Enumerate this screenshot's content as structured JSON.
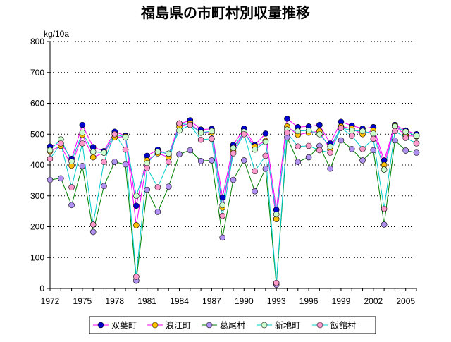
{
  "chart_data": {
    "type": "line",
    "title": "福島県の市町村別収量推移",
    "ylabel": "kg/10a",
    "xlabel": "",
    "ylim": [
      0,
      800
    ],
    "yticks": [
      0,
      100,
      200,
      300,
      400,
      500,
      600,
      700,
      800
    ],
    "xlim": [
      1972,
      2006
    ],
    "xticks": [
      1972,
      1975,
      1978,
      1981,
      1984,
      1987,
      1990,
      1993,
      1996,
      1999,
      2002,
      2005
    ],
    "grid": "horizontal dotted",
    "legend_position": "bottom",
    "x": [
      1972,
      1973,
      1974,
      1975,
      1976,
      1977,
      1978,
      1979,
      1980,
      1981,
      1982,
      1983,
      1984,
      1985,
      1986,
      1987,
      1988,
      1989,
      1990,
      1991,
      1992,
      1993,
      1994,
      1995,
      1996,
      1997,
      1998,
      1999,
      2000,
      2001,
      2002,
      2003,
      2004,
      2005,
      2006
    ],
    "series": [
      {
        "name": "双葉町",
        "line_color": "#ff00ff",
        "marker_color": "#0000cc",
        "values": [
          460,
          470,
          420,
          530,
          458,
          445,
          508,
          495,
          268,
          430,
          450,
          432,
          533,
          545,
          515,
          517,
          295,
          465,
          518,
          465,
          502,
          255,
          550,
          523,
          525,
          530,
          470,
          540,
          528,
          518,
          523,
          415,
          530,
          512,
          500
        ]
      },
      {
        "name": "浪江町",
        "line_color": "#ff00ff",
        "marker_color": "#ffc000",
        "values": [
          445,
          462,
          398,
          498,
          425,
          440,
          490,
          492,
          205,
          415,
          438,
          425,
          525,
          535,
          505,
          505,
          262,
          445,
          506,
          460,
          478,
          225,
          525,
          498,
          505,
          510,
          450,
          525,
          518,
          500,
          512,
          400,
          527,
          495,
          493
        ]
      },
      {
        "name": "葛尾村",
        "line_color": "#008000",
        "marker_color": "#b090f0",
        "values": [
          352,
          357,
          270,
          397,
          183,
          332,
          410,
          402,
          25,
          320,
          248,
          330,
          435,
          448,
          413,
          415,
          165,
          352,
          415,
          315,
          388,
          12,
          490,
          410,
          425,
          462,
          388,
          480,
          452,
          415,
          448,
          207,
          480,
          447,
          440
        ]
      },
      {
        "name": "新地町",
        "line_color": "#00cccc",
        "marker_color": "#ccffcc",
        "values": [
          448,
          483,
          412,
          505,
          443,
          440,
          500,
          490,
          300,
          406,
          443,
          437,
          512,
          530,
          505,
          510,
          270,
          455,
          508,
          450,
          475,
          240,
          515,
          510,
          512,
          500,
          460,
          520,
          512,
          510,
          502,
          385,
          525,
          508,
          495
        ]
      },
      {
        "name": "飯舘村",
        "line_color": "#00cccc",
        "marker_color": "#ff99cc",
        "values": [
          420,
          470,
          328,
          470,
          207,
          410,
          500,
          450,
          38,
          390,
          328,
          410,
          535,
          530,
          482,
          485,
          235,
          438,
          500,
          380,
          430,
          18,
          505,
          460,
          462,
          448,
          440,
          520,
          495,
          452,
          485,
          258,
          510,
          488,
          470
        ]
      }
    ]
  }
}
